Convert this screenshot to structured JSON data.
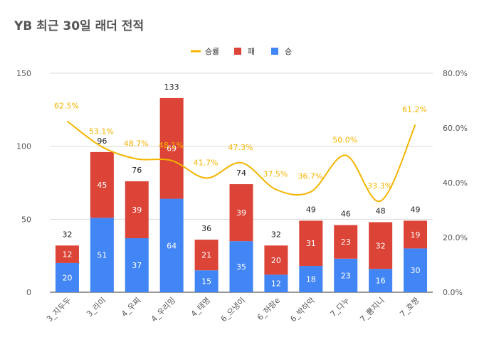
{
  "chart_data": {
    "type": "bar",
    "title": "YB 최근 30일 래더 전적",
    "categories": [
      "3_지두두",
      "3_라미",
      "4_우찌",
      "4_우리밍",
      "4_태영",
      "6_으냉이",
      "6_하랑e",
      "6_박하악",
      "7_다누",
      "7_뿅지니",
      "7_호짱"
    ],
    "series": [
      {
        "name": "승",
        "type": "bar",
        "color": "#4285f4",
        "values": [
          20,
          51,
          37,
          64,
          15,
          35,
          12,
          18,
          23,
          16,
          30
        ]
      },
      {
        "name": "패",
        "type": "bar",
        "color": "#db4437",
        "values": [
          12,
          45,
          39,
          69,
          21,
          39,
          20,
          31,
          23,
          32,
          19
        ]
      },
      {
        "name": "승률",
        "type": "line",
        "color": "#f4b400",
        "axis": "right",
        "values": [
          62.5,
          53.1,
          48.7,
          48.1,
          41.7,
          47.3,
          37.5,
          36.7,
          50.0,
          33.3,
          61.2
        ]
      }
    ],
    "totals": [
      "32",
      "96",
      "76",
      "133",
      "36",
      "74",
      "32",
      "49",
      "46",
      "48",
      "49"
    ],
    "rate_labels": [
      "62.5%",
      "53.1%",
      "48.7%",
      "48.1%",
      "41.7%",
      "47.3%",
      "37.5%",
      "36.7%",
      "50.0%",
      "33.3%",
      "61.2%"
    ],
    "y_left": {
      "min": 0,
      "max": 150,
      "ticks": [
        "0",
        "50",
        "100",
        "150"
      ]
    },
    "y_right": {
      "min": 0,
      "max": 80,
      "ticks": [
        "0.0%",
        "20.0%",
        "40.0%",
        "60.0%",
        "80.0%"
      ]
    },
    "legend": {
      "position": "top",
      "items": [
        "승률",
        "패",
        "승"
      ]
    },
    "grid": true
  }
}
